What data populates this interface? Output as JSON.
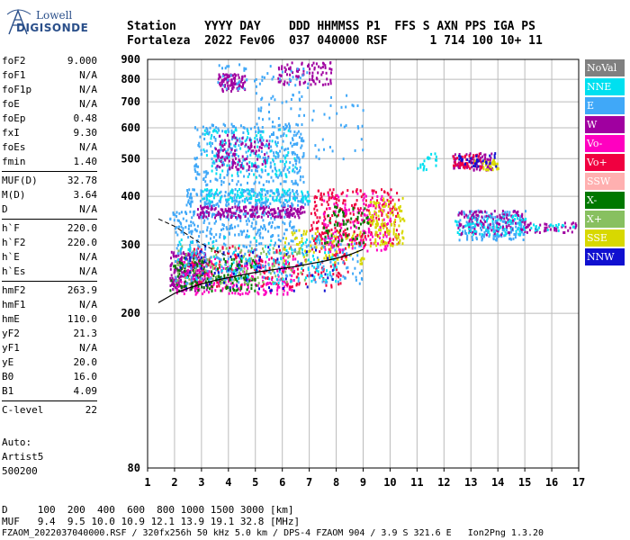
{
  "logo": {
    "line1": "Lowell",
    "line2": "DIGISONDE"
  },
  "header": {
    "line1": "Station    YYYY DAY    DDD HHMMSS P1  FFS S AXN PPS IGA PS",
    "line2": "Fortaleza  2022 Fev06  037 040000 RSF      1 714 100 10+ 11"
  },
  "params_group1": [
    {
      "name": "foF2",
      "value": "9.000"
    },
    {
      "name": "foF1",
      "value": "N/A"
    },
    {
      "name": "foF1p",
      "value": "N/A"
    },
    {
      "name": "foE",
      "value": "N/A"
    },
    {
      "name": "foEp",
      "value": "0.48"
    },
    {
      "name": "fxI",
      "value": "9.30"
    },
    {
      "name": "foEs",
      "value": "N/A"
    },
    {
      "name": "fmin",
      "value": "1.40"
    }
  ],
  "params_group2": [
    {
      "name": "MUF(D)",
      "value": "32.78"
    },
    {
      "name": "M(D)",
      "value": "3.64"
    },
    {
      "name": "D",
      "value": "N/A"
    }
  ],
  "params_group3": [
    {
      "name": "h`F",
      "value": "220.0"
    },
    {
      "name": "h`F2",
      "value": "220.0"
    },
    {
      "name": "h`E",
      "value": "N/A"
    },
    {
      "name": "h`Es",
      "value": "N/A"
    }
  ],
  "params_group4": [
    {
      "name": "hmF2",
      "value": "263.9"
    },
    {
      "name": "hmF1",
      "value": "N/A"
    },
    {
      "name": "hmE",
      "value": "110.0"
    },
    {
      "name": "yF2",
      "value": "21.3"
    },
    {
      "name": "yF1",
      "value": "N/A"
    },
    {
      "name": "yE",
      "value": "20.0"
    },
    {
      "name": "B0",
      "value": "16.0"
    },
    {
      "name": "B1",
      "value": "4.09"
    }
  ],
  "params_group5": [
    {
      "name": "C-level",
      "value": "22"
    }
  ],
  "auto": {
    "line1": "Auto:",
    "line2": "Artist5",
    "line3": "500200"
  },
  "legend": [
    {
      "label": "NoVal",
      "bg": "#808080",
      "fg": "#ffffff"
    },
    {
      "label": "NNE",
      "bg": "#00e0f0",
      "fg": "#ffffff"
    },
    {
      "label": "E",
      "bg": "#40a8f8",
      "fg": "#ffffff"
    },
    {
      "label": "W",
      "bg": "#a000a0",
      "fg": "#ffffff"
    },
    {
      "label": "Vo-",
      "bg": "#ff00c0",
      "fg": "#ffffff"
    },
    {
      "label": "Vo+",
      "bg": "#f00040",
      "fg": "#ffffff"
    },
    {
      "label": "SSW",
      "bg": "#ffb0b0",
      "fg": "#ffffff"
    },
    {
      "label": "X-",
      "bg": "#007800",
      "fg": "#ffffff"
    },
    {
      "label": "X+",
      "bg": "#88c060",
      "fg": "#ffffff"
    },
    {
      "label": "SSE",
      "bg": "#d8d800",
      "fg": "#ffffff"
    },
    {
      "label": "NNW",
      "bg": "#1010d0",
      "fg": "#ffffff"
    }
  ],
  "bottom": {
    "d_row": "D     100  200  400  600  800 1000 1500 3000 [km]",
    "muf_row": "MUF   9.4  9.5 10.0 10.9 12.1 13.9 19.1 32.8 [MHz]",
    "file_row": "FZAOM_2022037040000.RSF / 320fx256h 50 kHz 5.0 km / DPS-4 FZAOM 904 / 3.9 S 321.6 E   Ion2Png 1.3.20"
  },
  "chart_data": {
    "type": "scatter",
    "xlim": [
      1,
      17
    ],
    "ylim": [
      80,
      900
    ],
    "x_ticks": [
      "1",
      "2",
      "3",
      "4",
      "5",
      "6",
      "7",
      "8",
      "9",
      "10",
      "11",
      "12",
      "13",
      "14",
      "15",
      "16",
      "17"
    ],
    "y_ticks": [
      {
        "value": 80,
        "label": "80"
      },
      {
        "value": 200,
        "label": "200"
      },
      {
        "value": 300,
        "label": "300"
      },
      {
        "value": 400,
        "label": "400"
      },
      {
        "value": 500,
        "label": "500"
      },
      {
        "value": 600,
        "label": "600"
      },
      {
        "value": 700,
        "label": "700"
      },
      {
        "value": 800,
        "label": "800"
      },
      {
        "value": 900,
        "label": "900"
      }
    ],
    "y_axis_scale": "log",
    "grid": true,
    "legend_placement": "right",
    "clusters": [
      {
        "name": "W",
        "color": "#a000a0",
        "x": [
          1.8,
          3.2
        ],
        "y": [
          230,
          290
        ],
        "n": 220
      },
      {
        "name": "Vo-",
        "color": "#ff00c0",
        "x": [
          2,
          6.5
        ],
        "y": [
          225,
          280
        ],
        "n": 240
      },
      {
        "name": "Vo+",
        "color": "#f00040",
        "x": [
          2.5,
          8.5
        ],
        "y": [
          235,
          300
        ],
        "n": 200
      },
      {
        "name": "X-",
        "color": "#007800",
        "x": [
          1.8,
          5
        ],
        "y": [
          230,
          280
        ],
        "n": 160
      },
      {
        "name": "X+",
        "color": "#88c060",
        "x": [
          2,
          7
        ],
        "y": [
          240,
          300
        ],
        "n": 130
      },
      {
        "name": "E",
        "color": "#40a8f8",
        "x": [
          2,
          9
        ],
        "y": [
          240,
          320
        ],
        "n": 260
      },
      {
        "name": "NNE",
        "color": "#00e0f0",
        "x": [
          2,
          8
        ],
        "y": [
          240,
          320
        ],
        "n": 120
      },
      {
        "name": "SSE",
        "color": "#d8d800",
        "x": [
          6,
          9
        ],
        "y": [
          270,
          330
        ],
        "n": 90
      },
      {
        "name": "NNW",
        "color": "#1010d0",
        "x": [
          2,
          8
        ],
        "y": [
          230,
          300
        ],
        "n": 60
      },
      {
        "name": "E",
        "color": "#40a8f8",
        "x": [
          1.8,
          6.5
        ],
        "y": [
          320,
          370
        ],
        "n": 200
      },
      {
        "name": "Vo+",
        "color": "#f00040",
        "x": [
          7,
          10.3
        ],
        "y": [
          300,
          420
        ],
        "n": 260
      },
      {
        "name": "Vo-",
        "color": "#ff00c0",
        "x": [
          7.5,
          10
        ],
        "y": [
          290,
          410
        ],
        "n": 150
      },
      {
        "name": "SSE",
        "color": "#d8d800",
        "x": [
          9.2,
          10.5
        ],
        "y": [
          300,
          400
        ],
        "n": 120
      },
      {
        "name": "X-",
        "color": "#007800",
        "x": [
          7.5,
          9.2
        ],
        "y": [
          300,
          380
        ],
        "n": 60
      },
      {
        "name": "W",
        "color": "#a000a0",
        "x": [
          2.8,
          6.8
        ],
        "y": [
          355,
          380
        ],
        "n": 200
      },
      {
        "name": "E",
        "color": "#40a8f8",
        "x": [
          2.4,
          7
        ],
        "y": [
          380,
          420
        ],
        "n": 200
      },
      {
        "name": "NNE",
        "color": "#00e0f0",
        "x": [
          3,
          7
        ],
        "y": [
          390,
          420
        ],
        "n": 100
      },
      {
        "name": "E",
        "color": "#40a8f8",
        "x": [
          2.7,
          6.8
        ],
        "y": [
          430,
          620
        ],
        "n": 320
      },
      {
        "name": "NNE",
        "color": "#00e0f0",
        "x": [
          3,
          6.5
        ],
        "y": [
          450,
          600
        ],
        "n": 120
      },
      {
        "name": "W",
        "color": "#a000a0",
        "x": [
          3.5,
          5.5
        ],
        "y": [
          470,
          580
        ],
        "n": 110
      },
      {
        "name": "W",
        "color": "#a000a0",
        "x": [
          12.3,
          13.8
        ],
        "y": [
          470,
          520
        ],
        "n": 90
      },
      {
        "name": "Vo+",
        "color": "#f00040",
        "x": [
          12.3,
          13.5
        ],
        "y": [
          475,
          520
        ],
        "n": 50
      },
      {
        "name": "SSE",
        "color": "#d8d800",
        "x": [
          13,
          14
        ],
        "y": [
          470,
          500
        ],
        "n": 30
      },
      {
        "name": "NNW",
        "color": "#1010d0",
        "x": [
          12.5,
          14
        ],
        "y": [
          480,
          520
        ],
        "n": 30
      },
      {
        "name": "E",
        "color": "#40a8f8",
        "x": [
          12.5,
          15
        ],
        "y": [
          310,
          370
        ],
        "n": 200
      },
      {
        "name": "W",
        "color": "#a000a0",
        "x": [
          12.5,
          15
        ],
        "y": [
          320,
          370
        ],
        "n": 120
      },
      {
        "name": "NNE",
        "color": "#00e0f0",
        "x": [
          12.3,
          15
        ],
        "y": [
          320,
          360
        ],
        "n": 70
      },
      {
        "name": "W",
        "color": "#a000a0",
        "x": [
          15,
          16.9
        ],
        "y": [
          325,
          345
        ],
        "n": 40
      },
      {
        "name": "NNE",
        "color": "#00e0f0",
        "x": [
          15.2,
          16.8
        ],
        "y": [
          328,
          342
        ],
        "n": 20
      },
      {
        "name": "W",
        "color": "#a000a0",
        "x": [
          3.6,
          4.6
        ],
        "y": [
          750,
          830
        ],
        "n": 90
      },
      {
        "name": "W",
        "color": "#a000a0",
        "x": [
          5.8,
          7.8
        ],
        "y": [
          780,
          890
        ],
        "n": 90
      },
      {
        "name": "E",
        "color": "#40a8f8",
        "x": [
          3.5,
          7
        ],
        "y": [
          760,
          880
        ],
        "n": 50
      },
      {
        "name": "E",
        "color": "#40a8f8",
        "x": [
          5,
          9
        ],
        "y": [
          500,
          750
        ],
        "n": 90
      },
      {
        "name": "NNE",
        "color": "#00e0f0",
        "x": [
          11,
          11.7
        ],
        "y": [
          470,
          520
        ],
        "n": 20
      }
    ],
    "profile": {
      "x": [
        1.4,
        2,
        2.5,
        3,
        3.5,
        4,
        4.5,
        5,
        5.5,
        6,
        6.5,
        7,
        7.5,
        8,
        8.5,
        9
      ],
      "y": [
        213,
        225,
        232,
        238,
        243,
        247,
        251,
        255,
        258,
        261,
        264,
        268,
        272,
        277,
        283,
        292
      ]
    },
    "profile_upper": {
      "x": [
        1.4,
        2,
        2.5,
        3,
        3.5,
        4
      ],
      "y": [
        350,
        335,
        318,
        302,
        290,
        280
      ]
    }
  }
}
